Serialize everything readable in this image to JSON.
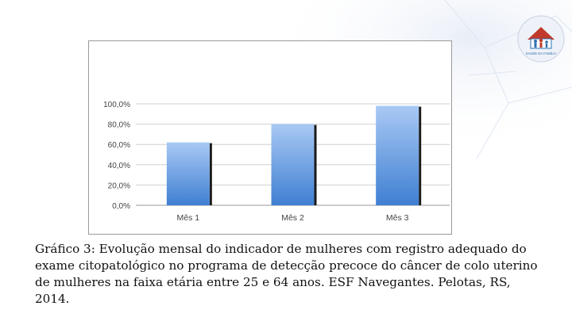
{
  "caption": "Gráfico 3: Evolução mensal do indicador de mulheres com registro adequado do exame citopatológico no programa de detecção precoce do câncer de colo uterino de mulheres na faixa etária entre 25 e 64 anos. ESF Navegantes. Pelotas, RS, 2014.",
  "logo": {
    "icon": "family-house-logo-icon",
    "text": "SAÚDE DA FAMÍLIA",
    "accent": "#c0392b",
    "accent2": "#2e6fb0"
  },
  "colors": {
    "bar_top": "#a9c9f4",
    "bar_bottom": "#3f7fd2",
    "bar_shadow": "#1a1a1a",
    "grid": "#d0d0d0",
    "axis_text": "#444444"
  },
  "chart_data": {
    "type": "bar",
    "categories": [
      "Mês 1",
      "Mês 2",
      "Mês 3"
    ],
    "values": [
      62.0,
      80.0,
      98.0
    ],
    "title": "",
    "xlabel": "",
    "ylabel": "",
    "ylim": [
      0,
      100
    ],
    "yticks": [
      "0,0%",
      "20,0%",
      "40,0%",
      "60,0%",
      "80,0%",
      "100,0%"
    ],
    "grid": true,
    "legend": "none"
  }
}
